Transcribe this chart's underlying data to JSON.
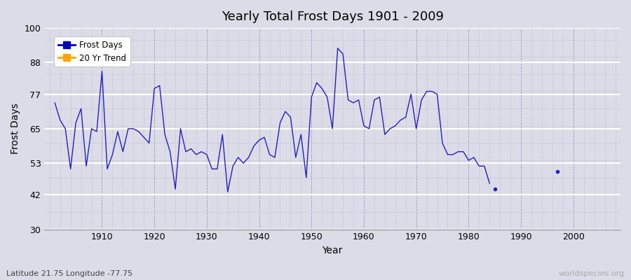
{
  "title": "Yearly Total Frost Days 1901 - 2009",
  "xlabel": "Year",
  "ylabel": "Frost Days",
  "subtitle": "Latitude 21.75 Longitude -77.75",
  "watermark": "worldspecies.org",
  "legend": [
    "Frost Days",
    "20 Yr Trend"
  ],
  "legend_colors": [
    "#0000bb",
    "#FFA500"
  ],
  "line_color": "#2222bb",
  "bg_color": "#dcdce8",
  "ylim": [
    30,
    100
  ],
  "xlim": [
    1899,
    2009
  ],
  "yticks": [
    30,
    42,
    53,
    65,
    77,
    88,
    100
  ],
  "xticks": [
    1910,
    1920,
    1930,
    1940,
    1950,
    1960,
    1970,
    1980,
    1990,
    2000
  ],
  "continuous_years": [
    1901,
    1902,
    1903,
    1904,
    1905,
    1906,
    1907,
    1908,
    1909,
    1910,
    1911,
    1912,
    1913,
    1914,
    1915,
    1916,
    1917,
    1918,
    1919,
    1920,
    1921,
    1922,
    1923,
    1924,
    1925,
    1926,
    1927,
    1928,
    1929,
    1930,
    1931,
    1932,
    1933,
    1934,
    1935,
    1936,
    1937,
    1938,
    1939,
    1940,
    1941,
    1942,
    1943,
    1944,
    1945,
    1946,
    1947,
    1948,
    1949,
    1950,
    1951,
    1952,
    1953,
    1954,
    1955,
    1956,
    1957,
    1958,
    1959,
    1960,
    1961,
    1962,
    1963,
    1964,
    1965,
    1966,
    1967,
    1968,
    1969,
    1970,
    1971,
    1972,
    1973,
    1974,
    1975,
    1976,
    1977,
    1978,
    1979,
    1980,
    1981,
    1982,
    1983,
    1984
  ],
  "continuous_values": [
    74,
    68,
    65,
    51,
    67,
    72,
    52,
    65,
    64,
    85,
    51,
    56,
    64,
    57,
    65,
    65,
    64,
    62,
    60,
    79,
    80,
    63,
    57,
    44,
    65,
    57,
    58,
    56,
    57,
    56,
    51,
    51,
    63,
    43,
    52,
    55,
    53,
    55,
    59,
    61,
    62,
    56,
    55,
    67,
    71,
    69,
    55,
    63,
    48,
    76,
    81,
    79,
    76,
    65,
    93,
    91,
    75,
    74,
    75,
    66,
    65,
    75,
    76,
    63,
    65,
    66,
    68,
    69,
    77,
    65,
    75,
    78,
    78,
    77,
    60,
    56,
    56,
    57,
    57,
    54,
    55,
    52,
    52,
    46
  ],
  "isolated_years": [
    1985,
    1997
  ],
  "isolated_values": [
    44,
    50
  ]
}
